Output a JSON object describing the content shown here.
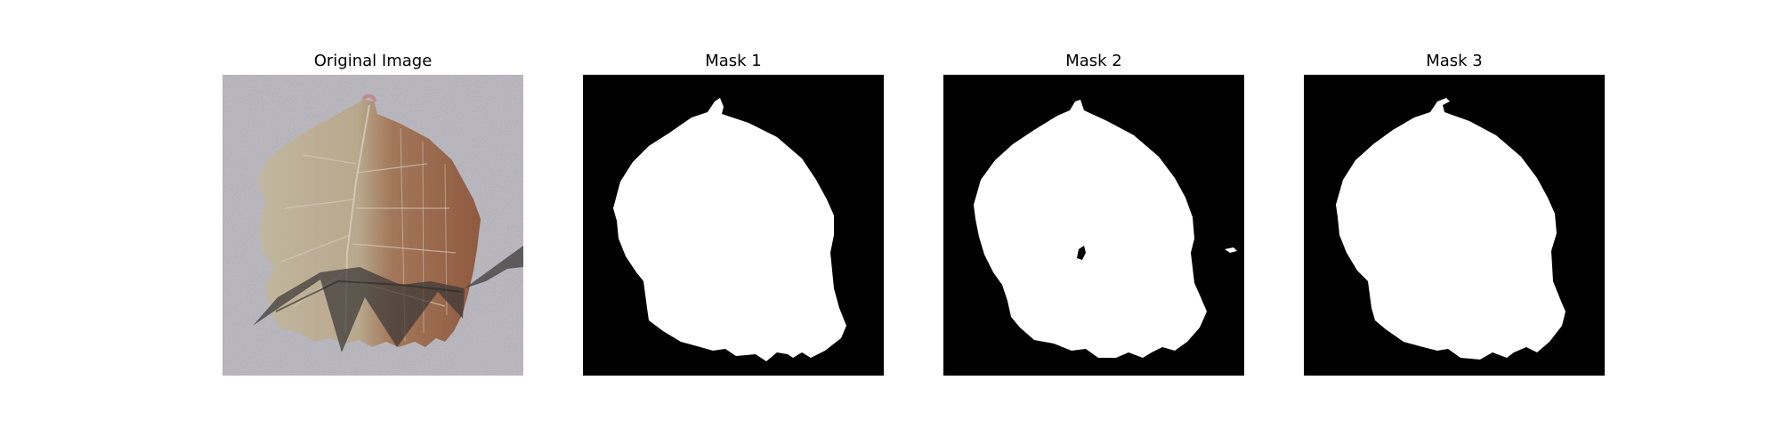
{
  "figure": {
    "panels": [
      {
        "title": "Original Image",
        "kind": "photo"
      },
      {
        "title": "Mask 1",
        "kind": "mask"
      },
      {
        "title": "Mask 2",
        "kind": "mask"
      },
      {
        "title": "Mask 3",
        "kind": "mask"
      }
    ]
  },
  "colors": {
    "mask_background": "#000000",
    "mask_foreground": "#ffffff",
    "photo_background": "#b7b4bd",
    "leaf_pale": "#b9ad95",
    "leaf_brown": "#9a6a4e",
    "shadow": "#3a3836"
  }
}
